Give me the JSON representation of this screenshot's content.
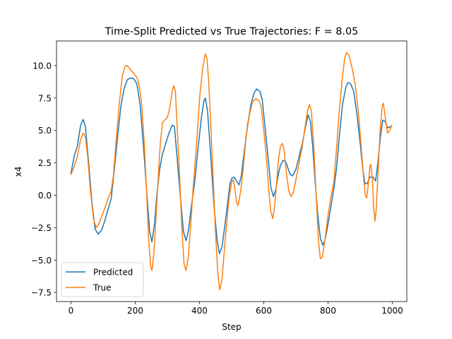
{
  "chart_data": {
    "type": "line",
    "title": "Time-Split Predicted vs True Trajectories: F = 8.05",
    "xlabel": "Step",
    "ylabel": "x4",
    "xlim": [
      -45,
      1045
    ],
    "ylim": [
      -8.2,
      11.9
    ],
    "xticks": [
      0,
      200,
      400,
      600,
      800,
      1000
    ],
    "xtick_labels": [
      "0",
      "200",
      "400",
      "600",
      "800",
      "1000"
    ],
    "yticks": [
      -7.5,
      -5.0,
      -2.5,
      0.0,
      2.5,
      5.0,
      7.5,
      10.0
    ],
    "ytick_labels": [
      "−7.5",
      "−5.0",
      "−2.5",
      "0.0",
      "2.5",
      "5.0",
      "7.5",
      "10.0"
    ],
    "grid": false,
    "legend_position": "lower-left",
    "series": [
      {
        "name": "Predicted",
        "color": "#1f77b4",
        "points": [
          [
            0,
            1.7
          ],
          [
            10,
            3.0
          ],
          [
            20,
            3.8
          ],
          [
            30,
            5.4
          ],
          [
            38,
            5.85
          ],
          [
            45,
            5.3
          ],
          [
            55,
            2.5
          ],
          [
            65,
            -0.5
          ],
          [
            75,
            -2.6
          ],
          [
            85,
            -3.0
          ],
          [
            95,
            -2.7
          ],
          [
            105,
            -2.0
          ],
          [
            115,
            -1.1
          ],
          [
            125,
            -0.3
          ],
          [
            135,
            2.0
          ],
          [
            145,
            4.5
          ],
          [
            155,
            6.8
          ],
          [
            165,
            8.2
          ],
          [
            175,
            8.9
          ],
          [
            185,
            9.05
          ],
          [
            195,
            9.0
          ],
          [
            205,
            8.6
          ],
          [
            215,
            7.0
          ],
          [
            225,
            4.0
          ],
          [
            235,
            0.5
          ],
          [
            245,
            -2.8
          ],
          [
            252,
            -3.6
          ],
          [
            260,
            -2.2
          ],
          [
            268,
            0.2
          ],
          [
            276,
            2.0
          ],
          [
            285,
            3.2
          ],
          [
            295,
            4.0
          ],
          [
            305,
            4.8
          ],
          [
            315,
            5.4
          ],
          [
            322,
            5.3
          ],
          [
            330,
            3.0
          ],
          [
            340,
            0.0
          ],
          [
            350,
            -2.8
          ],
          [
            358,
            -3.5
          ],
          [
            365,
            -2.8
          ],
          [
            375,
            -0.8
          ],
          [
            385,
            1.0
          ],
          [
            395,
            3.5
          ],
          [
            405,
            5.8
          ],
          [
            413,
            7.2
          ],
          [
            418,
            7.5
          ],
          [
            425,
            6.5
          ],
          [
            435,
            3.0
          ],
          [
            445,
            -0.8
          ],
          [
            455,
            -3.5
          ],
          [
            462,
            -4.5
          ],
          [
            470,
            -4.0
          ],
          [
            478,
            -2.5
          ],
          [
            488,
            -0.5
          ],
          [
            495,
            0.9
          ],
          [
            500,
            1.3
          ],
          [
            508,
            1.4
          ],
          [
            515,
            1.1
          ],
          [
            523,
            0.8
          ],
          [
            530,
            1.5
          ],
          [
            540,
            3.5
          ],
          [
            550,
            5.5
          ],
          [
            560,
            7.0
          ],
          [
            570,
            7.9
          ],
          [
            578,
            8.2
          ],
          [
            588,
            8.0
          ],
          [
            595,
            7.4
          ],
          [
            605,
            5.0
          ],
          [
            615,
            2.5
          ],
          [
            622,
            0.6
          ],
          [
            630,
            -0.1
          ],
          [
            638,
            0.5
          ],
          [
            645,
            1.6
          ],
          [
            652,
            2.3
          ],
          [
            660,
            2.7
          ],
          [
            668,
            2.6
          ],
          [
            675,
            2.1
          ],
          [
            682,
            1.6
          ],
          [
            690,
            1.5
          ],
          [
            700,
            2.0
          ],
          [
            710,
            3.0
          ],
          [
            720,
            4.0
          ],
          [
            730,
            5.3
          ],
          [
            738,
            6.2
          ],
          [
            745,
            5.7
          ],
          [
            752,
            3.8
          ],
          [
            760,
            1.0
          ],
          [
            768,
            -1.5
          ],
          [
            776,
            -3.3
          ],
          [
            783,
            -3.85
          ],
          [
            790,
            -3.5
          ],
          [
            798,
            -2.5
          ],
          [
            808,
            -1.0
          ],
          [
            818,
            0.5
          ],
          [
            826,
            2.0
          ],
          [
            835,
            4.5
          ],
          [
            845,
            7.0
          ],
          [
            855,
            8.3
          ],
          [
            862,
            8.7
          ],
          [
            870,
            8.6
          ],
          [
            880,
            8.0
          ],
          [
            890,
            6.2
          ],
          [
            900,
            4.0
          ],
          [
            908,
            2.0
          ],
          [
            915,
            0.9
          ],
          [
            922,
            0.9
          ],
          [
            930,
            1.4
          ],
          [
            940,
            1.4
          ],
          [
            948,
            1.1
          ],
          [
            955,
            2.5
          ],
          [
            963,
            4.5
          ],
          [
            970,
            5.8
          ],
          [
            978,
            5.7
          ],
          [
            985,
            5.2
          ],
          [
            995,
            5.3
          ]
        ]
      },
      {
        "name": "True",
        "color": "#ff7f0e",
        "points": [
          [
            0,
            1.6
          ],
          [
            10,
            2.2
          ],
          [
            20,
            3.0
          ],
          [
            30,
            4.3
          ],
          [
            38,
            4.8
          ],
          [
            45,
            4.5
          ],
          [
            52,
            3.0
          ],
          [
            60,
            0.5
          ],
          [
            70,
            -1.8
          ],
          [
            78,
            -2.5
          ],
          [
            85,
            -2.3
          ],
          [
            95,
            -1.7
          ],
          [
            105,
            -1.0
          ],
          [
            115,
            -0.3
          ],
          [
            125,
            0.3
          ],
          [
            132,
            1.5
          ],
          [
            140,
            4.0
          ],
          [
            150,
            7.0
          ],
          [
            160,
            9.2
          ],
          [
            168,
            9.95
          ],
          [
            175,
            10.0
          ],
          [
            185,
            9.7
          ],
          [
            195,
            9.4
          ],
          [
            205,
            9.1
          ],
          [
            212,
            8.5
          ],
          [
            220,
            7.0
          ],
          [
            228,
            4.0
          ],
          [
            235,
            0.5
          ],
          [
            242,
            -3.5
          ],
          [
            248,
            -5.5
          ],
          [
            252,
            -5.8
          ],
          [
            258,
            -4.5
          ],
          [
            265,
            -1.5
          ],
          [
            272,
            1.5
          ],
          [
            278,
            4.0
          ],
          [
            285,
            5.6
          ],
          [
            292,
            5.8
          ],
          [
            300,
            6.0
          ],
          [
            308,
            6.8
          ],
          [
            315,
            8.0
          ],
          [
            320,
            8.45
          ],
          [
            325,
            8.0
          ],
          [
            330,
            5.5
          ],
          [
            338,
            1.5
          ],
          [
            345,
            -2.5
          ],
          [
            352,
            -5.3
          ],
          [
            358,
            -5.8
          ],
          [
            365,
            -4.8
          ],
          [
            372,
            -2.5
          ],
          [
            380,
            0.5
          ],
          [
            388,
            3.0
          ],
          [
            395,
            5.5
          ],
          [
            402,
            8.0
          ],
          [
            410,
            9.8
          ],
          [
            418,
            10.9
          ],
          [
            423,
            10.6
          ],
          [
            428,
            9.0
          ],
          [
            435,
            5.5
          ],
          [
            442,
            1.5
          ],
          [
            450,
            -3.0
          ],
          [
            457,
            -6.0
          ],
          [
            463,
            -7.3
          ],
          [
            470,
            -6.5
          ],
          [
            478,
            -4.0
          ],
          [
            485,
            -2.0
          ],
          [
            492,
            -0.2
          ],
          [
            500,
            1.0
          ],
          [
            505,
            1.2
          ],
          [
            510,
            0.5
          ],
          [
            515,
            -0.5
          ],
          [
            520,
            -0.8
          ],
          [
            528,
            0.3
          ],
          [
            535,
            1.8
          ],
          [
            545,
            4.5
          ],
          [
            555,
            6.2
          ],
          [
            565,
            7.2
          ],
          [
            575,
            7.45
          ],
          [
            585,
            7.3
          ],
          [
            592,
            6.8
          ],
          [
            600,
            5.0
          ],
          [
            608,
            3.0
          ],
          [
            615,
            0.5
          ],
          [
            622,
            -1.3
          ],
          [
            628,
            -1.8
          ],
          [
            634,
            -0.8
          ],
          [
            640,
            1.0
          ],
          [
            646,
            2.8
          ],
          [
            652,
            3.8
          ],
          [
            658,
            4.0
          ],
          [
            663,
            3.5
          ],
          [
            670,
            1.8
          ],
          [
            678,
            0.3
          ],
          [
            685,
            -0.1
          ],
          [
            692,
            0.2
          ],
          [
            700,
            1.2
          ],
          [
            710,
            2.5
          ],
          [
            720,
            3.8
          ],
          [
            728,
            5.2
          ],
          [
            736,
            6.5
          ],
          [
            742,
            7.0
          ],
          [
            748,
            6.5
          ],
          [
            755,
            4.0
          ],
          [
            762,
            0.5
          ],
          [
            770,
            -3.5
          ],
          [
            776,
            -4.9
          ],
          [
            782,
            -4.8
          ],
          [
            790,
            -3.5
          ],
          [
            800,
            -1.5
          ],
          [
            810,
            0.0
          ],
          [
            818,
            1.0
          ],
          [
            826,
            3.5
          ],
          [
            835,
            6.5
          ],
          [
            845,
            9.2
          ],
          [
            852,
            10.6
          ],
          [
            858,
            11.0
          ],
          [
            865,
            10.8
          ],
          [
            875,
            9.8
          ],
          [
            885,
            8.5
          ],
          [
            895,
            6.2
          ],
          [
            903,
            3.8
          ],
          [
            910,
            1.5
          ],
          [
            916,
            0.0
          ],
          [
            920,
            -0.2
          ],
          [
            925,
            0.8
          ],
          [
            930,
            2.2
          ],
          [
            933,
            2.4
          ],
          [
            938,
            1.2
          ],
          [
            942,
            -1.0
          ],
          [
            946,
            -2.0
          ],
          [
            950,
            -1.0
          ],
          [
            955,
            1.5
          ],
          [
            962,
            5.0
          ],
          [
            968,
            6.8
          ],
          [
            972,
            7.1
          ],
          [
            978,
            6.0
          ],
          [
            985,
            4.8
          ],
          [
            992,
            5.0
          ],
          [
            998,
            5.4
          ]
        ]
      }
    ]
  }
}
